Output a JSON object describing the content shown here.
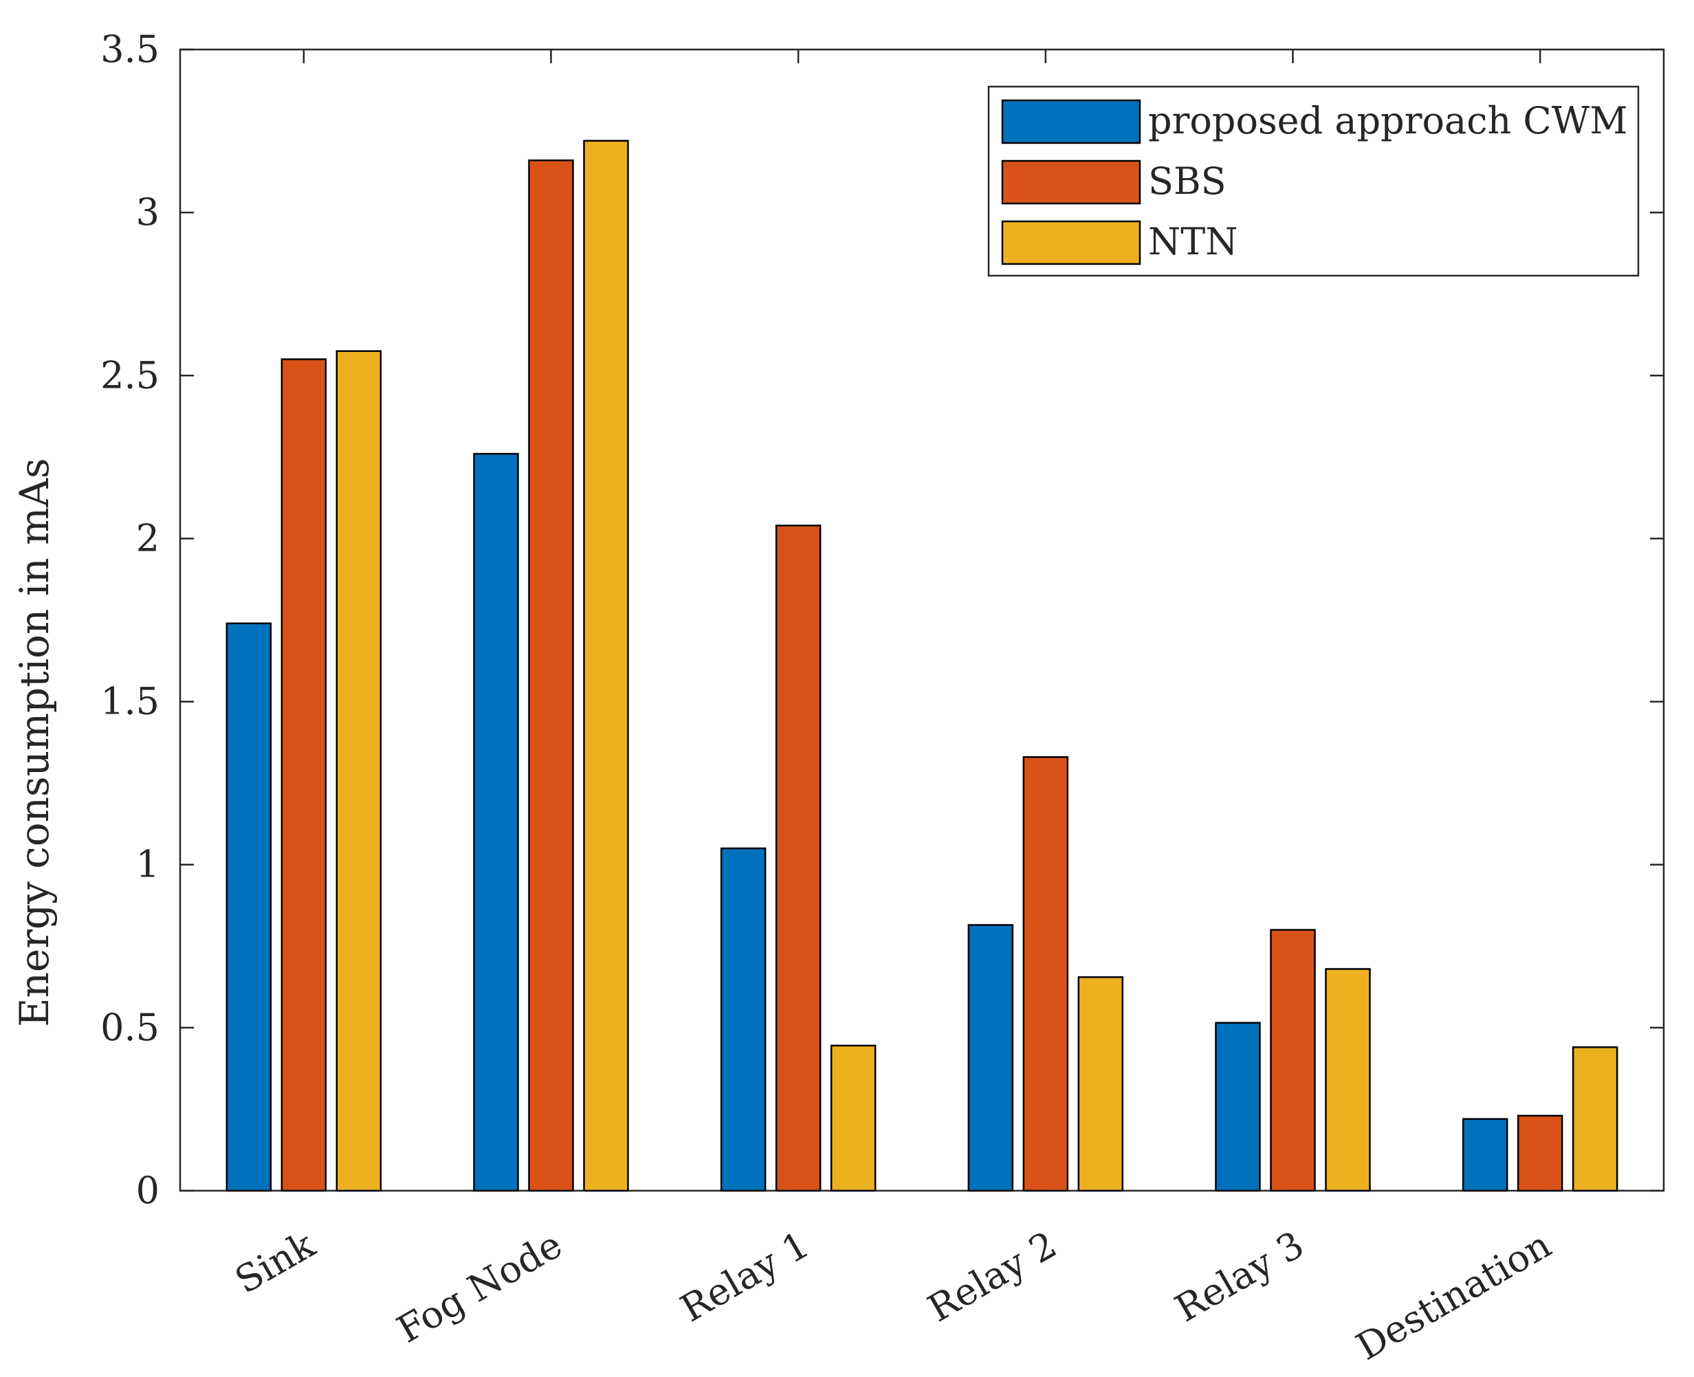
{
  "chart_data": {
    "type": "bar",
    "title": "",
    "xlabel": "",
    "ylabel": "Energy consumption in mAs",
    "ylim": [
      0,
      3.5
    ],
    "yticks": [
      "0",
      "0.5",
      "1",
      "1.5",
      "2",
      "2.5",
      "3",
      "3.5"
    ],
    "categories": [
      "Sink",
      "Fog Node",
      "Relay 1",
      "Relay 2",
      "Relay 3",
      "Destination"
    ],
    "series": [
      {
        "name": "proposed approach CWM",
        "color": "#0072BD",
        "values": [
          1.74,
          2.26,
          1.05,
          0.815,
          0.515,
          0.22
        ]
      },
      {
        "name": "SBS",
        "color": "#D95319",
        "values": [
          2.55,
          3.16,
          2.04,
          1.33,
          0.8,
          0.23
        ]
      },
      {
        "name": "NTN",
        "color": "#EDB120",
        "values": [
          2.575,
          3.22,
          0.445,
          0.655,
          0.68,
          0.44
        ]
      }
    ],
    "legend_position": "top-right",
    "grid": false
  }
}
